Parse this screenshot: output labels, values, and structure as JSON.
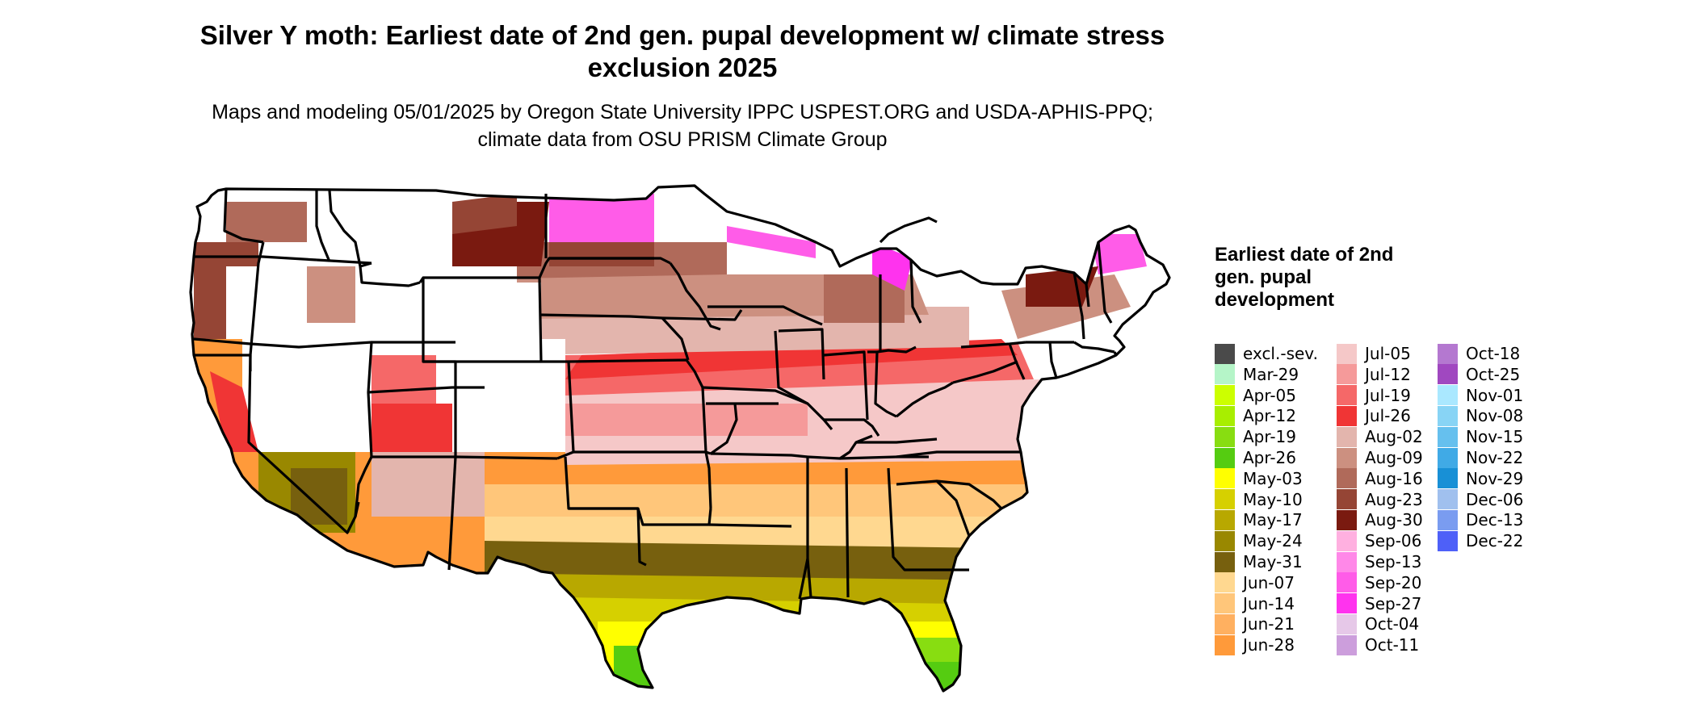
{
  "title": "Silver Y moth: Earliest date of 2nd gen. pupal development w/ climate stress exclusion 2025",
  "subtitle": "Maps and modeling 05/01/2025 by Oregon State University IPPC USPEST.ORG and USDA-APHIS-PPQ; climate data from OSU PRISM Climate Group",
  "legend": {
    "title": "Earliest date of 2nd gen. pupal development",
    "items": [
      {
        "label": "excl.-sev.",
        "color": "#4a4a4a"
      },
      {
        "label": "Mar-29",
        "color": "#b5f5c8"
      },
      {
        "label": "Apr-05",
        "color": "#ccff00"
      },
      {
        "label": "Apr-12",
        "color": "#a8ee00"
      },
      {
        "label": "Apr-19",
        "color": "#88dd11"
      },
      {
        "label": "Apr-26",
        "color": "#55cc11"
      },
      {
        "label": "May-03",
        "color": "#ffff00"
      },
      {
        "label": "May-10",
        "color": "#d6d000"
      },
      {
        "label": "May-17",
        "color": "#b8a800"
      },
      {
        "label": "May-24",
        "color": "#998800"
      },
      {
        "label": "May-31",
        "color": "#77600e"
      },
      {
        "label": "Jun-07",
        "color": "#ffd890"
      },
      {
        "label": "Jun-14",
        "color": "#ffc67a"
      },
      {
        "label": "Jun-21",
        "color": "#ffb060"
      },
      {
        "label": "Jun-28",
        "color": "#ff9a3a"
      },
      {
        "label": "Jul-05",
        "color": "#f5c8c8"
      },
      {
        "label": "Jul-12",
        "color": "#f59a9a"
      },
      {
        "label": "Jul-19",
        "color": "#f56868"
      },
      {
        "label": "Jul-26",
        "color": "#f03535"
      },
      {
        "label": "Aug-02",
        "color": "#e3b5ad"
      },
      {
        "label": "Aug-09",
        "color": "#cc9080"
      },
      {
        "label": "Aug-16",
        "color": "#b06a5a"
      },
      {
        "label": "Aug-23",
        "color": "#954535"
      },
      {
        "label": "Aug-30",
        "color": "#7a1a10"
      },
      {
        "label": "Sep-06",
        "color": "#ffb0e0"
      },
      {
        "label": "Sep-13",
        "color": "#ff88e8"
      },
      {
        "label": "Sep-20",
        "color": "#ff5ce8"
      },
      {
        "label": "Sep-27",
        "color": "#ff33ee"
      },
      {
        "label": "Oct-04",
        "color": "#e6c8e8"
      },
      {
        "label": "Oct-11",
        "color": "#cc9edc"
      },
      {
        "label": "Oct-18",
        "color": "#b478d0"
      },
      {
        "label": "Oct-25",
        "color": "#a048c0"
      },
      {
        "label": "Nov-01",
        "color": "#aae8ff"
      },
      {
        "label": "Nov-08",
        "color": "#88d4f5"
      },
      {
        "label": "Nov-15",
        "color": "#66c0ee"
      },
      {
        "label": "Nov-22",
        "color": "#40aae6"
      },
      {
        "label": "Nov-29",
        "color": "#1890d6"
      },
      {
        "label": "Dec-06",
        "color": "#a0c0ee"
      },
      {
        "label": "Dec-13",
        "color": "#7a9cf0"
      },
      {
        "label": "Dec-22",
        "color": "#4e60f8"
      }
    ]
  }
}
